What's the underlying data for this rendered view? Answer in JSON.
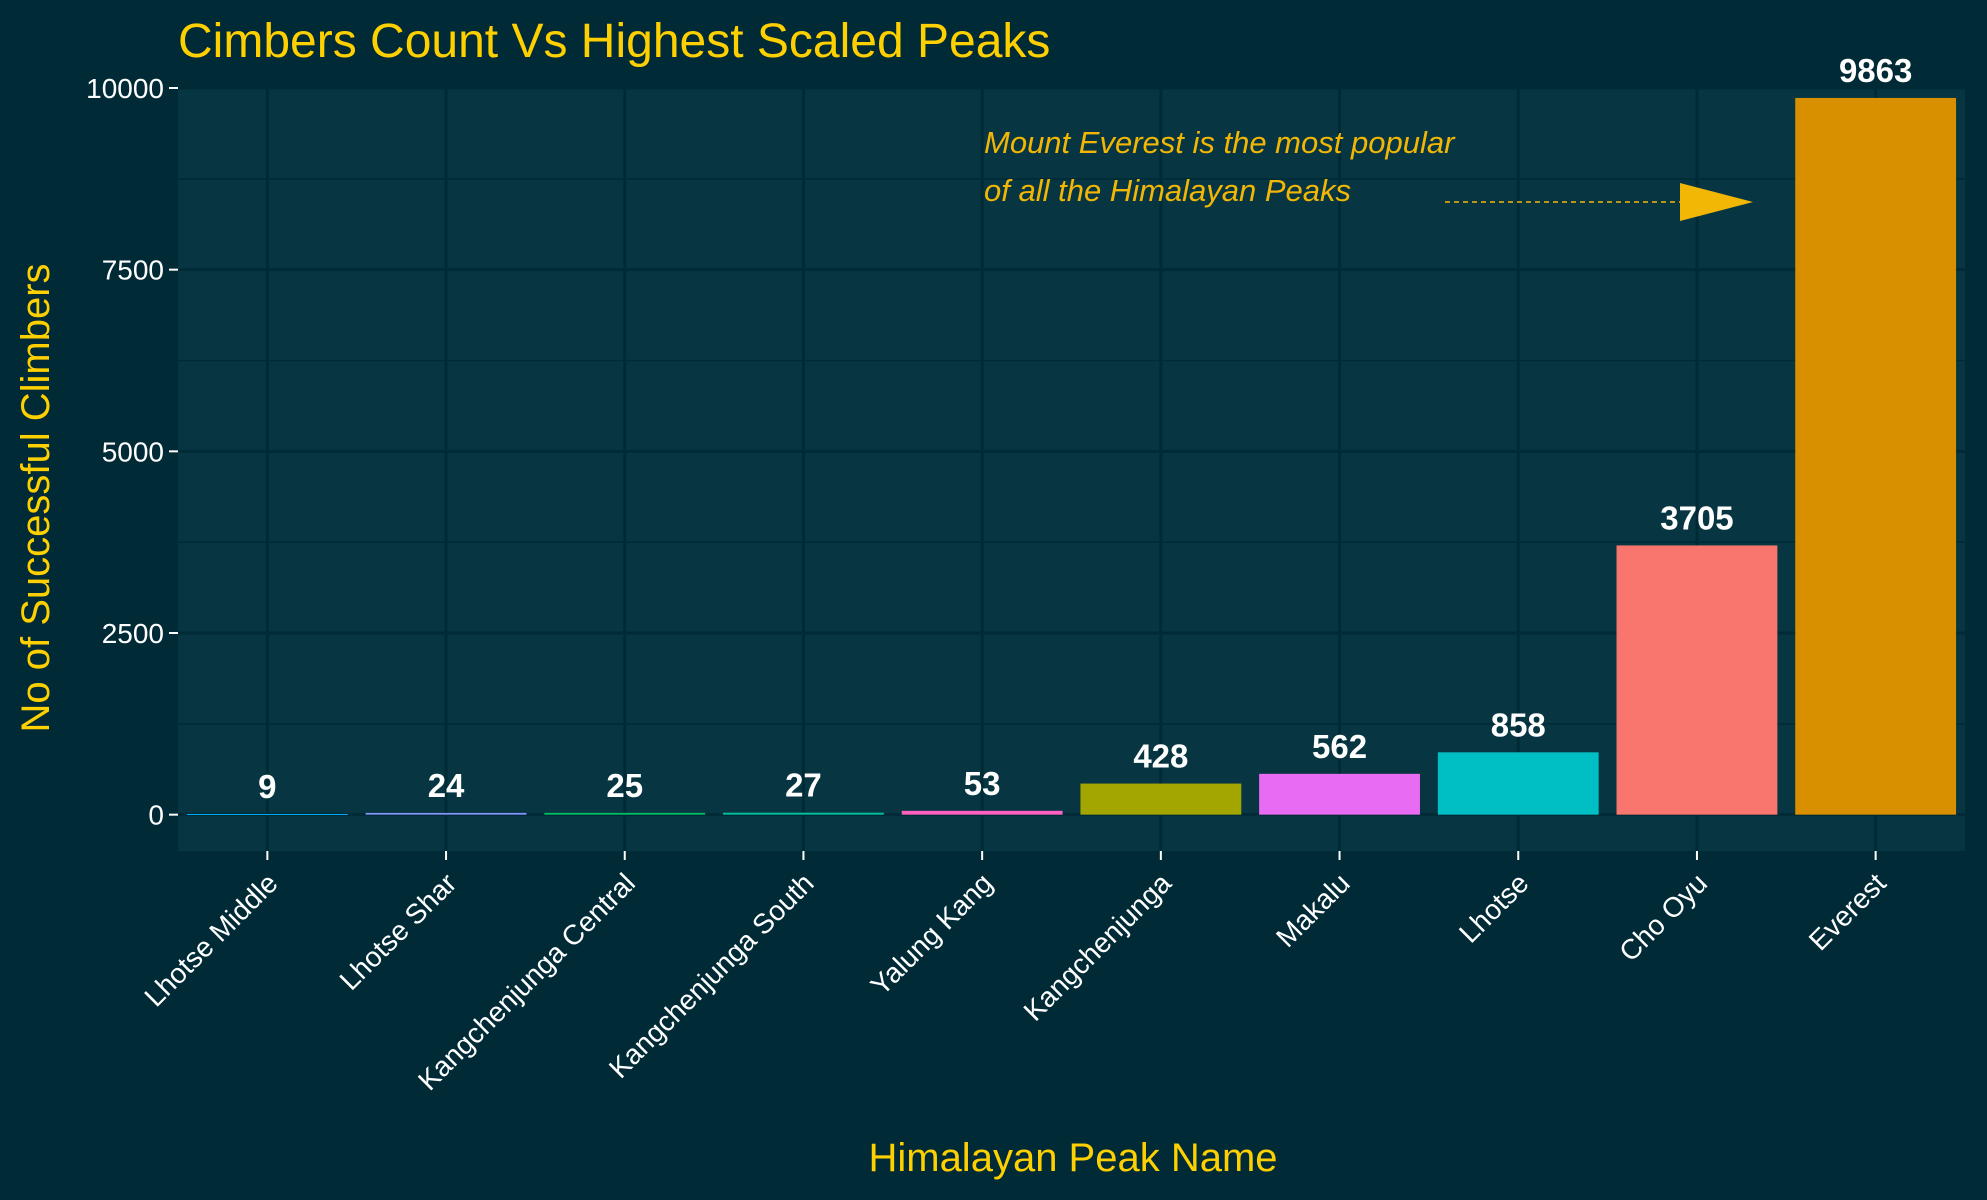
{
  "colors": {
    "background": "#002b36",
    "panel": "#073642",
    "grid": "#002b36",
    "text": "#ffffff",
    "accent": "#ffd000",
    "annotation": "#f2b705"
  },
  "chart_data": {
    "type": "bar",
    "title": "Cimbers Count Vs Highest Scaled Peaks",
    "xlabel": "Himalayan Peak Name",
    "ylabel": "No of Successful Climbers",
    "categories": [
      "Lhotse Middle",
      "Lhotse Shar",
      "Kangchenjunga Central",
      "Kangchenjunga South",
      "Yalung Kang",
      "Kangchenjunga",
      "Makalu",
      "Lhotse",
      "Cho Oyu",
      "Everest"
    ],
    "values": [
      9,
      24,
      25,
      27,
      53,
      428,
      562,
      858,
      3705,
      9863
    ],
    "bar_colors": [
      "#00a9ff",
      "#8494ff",
      "#00be67",
      "#00c19a",
      "#ff61c3",
      "#a3a500",
      "#e76bf3",
      "#00bfc4",
      "#f8766d",
      "#d89000"
    ],
    "ylim": [
      -500,
      10000
    ],
    "y_ticks": [
      0,
      2500,
      5000,
      7500,
      10000
    ],
    "grid": true,
    "legend": "none",
    "annotation": {
      "lines": [
        "Mount Everest is the most popular",
        "of all the Himalayan Peaks"
      ],
      "points_to": "Everest"
    }
  }
}
